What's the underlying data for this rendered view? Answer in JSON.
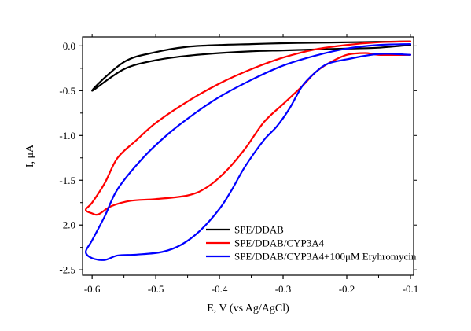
{
  "chart_data": {
    "type": "line",
    "title": "",
    "xlabel": "E, V (vs Ag/AgCl)",
    "ylabel": "I, μA",
    "xlim": [
      -0.615,
      -0.095
    ],
    "ylim": [
      -2.56,
      0.1
    ],
    "x_reversed_direction": "left-to-right from -0.6 to -0.1",
    "xticks": [
      -0.6,
      -0.5,
      -0.4,
      -0.3,
      -0.2,
      -0.1
    ],
    "xtick_labels": [
      "-0.6",
      "-0.5",
      "-0.4",
      "-0.3",
      "-0.2",
      "-0.1"
    ],
    "yticks": [
      0.0,
      -0.5,
      -1.0,
      -1.5,
      -2.0,
      -2.5
    ],
    "ytick_labels": [
      "0.0",
      "-0.5",
      "-1.0",
      "-1.5",
      "-2.0",
      "-2.5"
    ],
    "grid": false,
    "legend_position": "bottom-right",
    "series": [
      {
        "name": "SPE/DDAB",
        "color": "#000000",
        "points": [
          [
            -0.1,
            0.01
          ],
          [
            -0.15,
            -0.02
          ],
          [
            -0.2,
            -0.03
          ],
          [
            -0.25,
            -0.04
          ],
          [
            -0.3,
            -0.05
          ],
          [
            -0.35,
            -0.06
          ],
          [
            -0.4,
            -0.08
          ],
          [
            -0.45,
            -0.11
          ],
          [
            -0.5,
            -0.16
          ],
          [
            -0.55,
            -0.26
          ],
          [
            -0.6,
            -0.5
          ],
          [
            -0.55,
            -0.18
          ],
          [
            -0.5,
            -0.07
          ],
          [
            -0.45,
            -0.01
          ],
          [
            -0.4,
            0.01
          ],
          [
            -0.35,
            0.02
          ],
          [
            -0.3,
            0.03
          ],
          [
            -0.25,
            0.035
          ],
          [
            -0.2,
            0.04
          ],
          [
            -0.15,
            0.045
          ],
          [
            -0.1,
            0.05
          ]
        ]
      },
      {
        "name": "SPE/DDAB/CYP3A4",
        "color": "#ff0000",
        "points": [
          [
            -0.1,
            -0.1
          ],
          [
            -0.15,
            -0.1
          ],
          [
            -0.17,
            -0.08
          ],
          [
            -0.2,
            -0.1
          ],
          [
            -0.23,
            -0.2
          ],
          [
            -0.25,
            -0.3
          ],
          [
            -0.27,
            -0.45
          ],
          [
            -0.3,
            -0.65
          ],
          [
            -0.33,
            -0.85
          ],
          [
            -0.36,
            -1.15
          ],
          [
            -0.39,
            -1.4
          ],
          [
            -0.42,
            -1.58
          ],
          [
            -0.45,
            -1.67
          ],
          [
            -0.5,
            -1.71
          ],
          [
            -0.54,
            -1.73
          ],
          [
            -0.57,
            -1.79
          ],
          [
            -0.59,
            -1.88
          ],
          [
            -0.6,
            -1.87
          ],
          [
            -0.61,
            -1.83
          ],
          [
            -0.6,
            -1.75
          ],
          [
            -0.58,
            -1.53
          ],
          [
            -0.56,
            -1.25
          ],
          [
            -0.53,
            -1.05
          ],
          [
            -0.5,
            -0.86
          ],
          [
            -0.45,
            -0.62
          ],
          [
            -0.4,
            -0.42
          ],
          [
            -0.35,
            -0.26
          ],
          [
            -0.3,
            -0.13
          ],
          [
            -0.25,
            -0.04
          ],
          [
            -0.2,
            0.01
          ],
          [
            -0.15,
            0.04
          ],
          [
            -0.1,
            0.05
          ]
        ]
      },
      {
        "name": "SPE/DDAB/CYP3A4+100μM Eryhromycin",
        "color": "#0000ff",
        "points": [
          [
            -0.1,
            -0.1
          ],
          [
            -0.15,
            -0.09
          ],
          [
            -0.2,
            -0.15
          ],
          [
            -0.23,
            -0.2
          ],
          [
            -0.25,
            -0.3
          ],
          [
            -0.27,
            -0.45
          ],
          [
            -0.29,
            -0.7
          ],
          [
            -0.31,
            -0.9
          ],
          [
            -0.33,
            -1.05
          ],
          [
            -0.36,
            -1.35
          ],
          [
            -0.38,
            -1.6
          ],
          [
            -0.4,
            -1.82
          ],
          [
            -0.43,
            -2.06
          ],
          [
            -0.46,
            -2.22
          ],
          [
            -0.49,
            -2.3
          ],
          [
            -0.53,
            -2.33
          ],
          [
            -0.56,
            -2.34
          ],
          [
            -0.58,
            -2.39
          ],
          [
            -0.6,
            -2.37
          ],
          [
            -0.61,
            -2.3
          ],
          [
            -0.6,
            -2.17
          ],
          [
            -0.58,
            -1.9
          ],
          [
            -0.56,
            -1.6
          ],
          [
            -0.52,
            -1.25
          ],
          [
            -0.48,
            -0.98
          ],
          [
            -0.44,
            -0.76
          ],
          [
            -0.4,
            -0.57
          ],
          [
            -0.35,
            -0.38
          ],
          [
            -0.3,
            -0.22
          ],
          [
            -0.25,
            -0.11
          ],
          [
            -0.2,
            -0.03
          ],
          [
            -0.15,
            0.01
          ],
          [
            -0.1,
            0.02
          ]
        ]
      }
    ]
  }
}
